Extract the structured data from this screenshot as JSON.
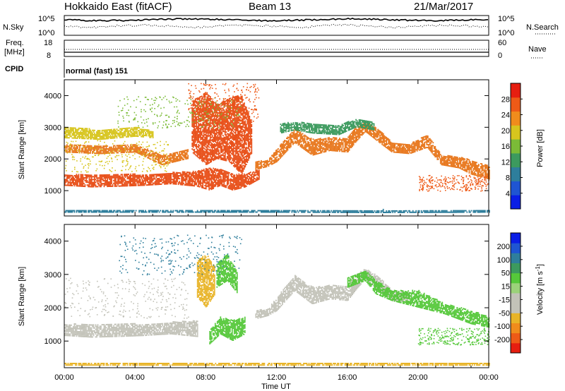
{
  "header": {
    "station": "Hokkaido East (fitACF)",
    "beam": "Beam 13",
    "date": "21/Mar/2017"
  },
  "top_panels": {
    "nsky_label": "N.Sky",
    "nsearch_label": "N.Search",
    "noise_ticks": [
      "10^5",
      "10^0"
    ],
    "freq_label": "Freq.",
    "freq_unit": "[MHz]",
    "freq_ticks": [
      "18",
      "8"
    ],
    "nave_ticks": [
      "60",
      "0"
    ],
    "nave_label": "Nave",
    "cpid_label": "CPID",
    "cpid_value": "normal (fast) 151"
  },
  "colors": {
    "scatter_orange": "#e8781e",
    "ground_gray": "#c2c2b8",
    "velocity_green": "#55c83a"
  },
  "chart_data": [
    {
      "type": "heatmap",
      "name": "power",
      "ylabel": "Slant Range [km]",
      "ylim": [
        200,
        4500
      ],
      "y_ticks": [
        "1000",
        "2000",
        "3000",
        "4000"
      ],
      "xlim": [
        0,
        24
      ],
      "x_ticks": [
        "00:00",
        "04:00",
        "08:00",
        "12:00",
        "16:00",
        "20:00",
        "00:00"
      ],
      "colorbar": {
        "label": "Power [dB]",
        "range": [
          0,
          32
        ],
        "ticks": [
          "4",
          "8",
          "12",
          "16",
          "20",
          "24",
          "28"
        ],
        "colors": [
          "#0a1ee6",
          "#1f55d2",
          "#2e7e9c",
          "#3c9a5e",
          "#7bbb37",
          "#d7c51e",
          "#f08c1c",
          "#ee5a17",
          "#e61e10"
        ]
      },
      "bands": [
        {
          "color": "#e8501a",
          "pts": [
            [
              0,
              1150,
              1500
            ],
            [
              1.5,
              1100,
              1480
            ],
            [
              3,
              1120,
              1500
            ],
            [
              4.5,
              1150,
              1500
            ],
            [
              6,
              1200,
              1550
            ],
            [
              7.5,
              1120,
              1600
            ],
            [
              8.2,
              1000,
              1700
            ],
            [
              8.8,
              1150,
              1650
            ],
            [
              9.5,
              1000,
              1500
            ],
            [
              10.2,
              1100,
              1500
            ],
            [
              11,
              1350,
              1650
            ]
          ]
        },
        {
          "color": "#e8781e",
          "pts": [
            [
              0,
              2200,
              2450
            ],
            [
              2,
              2150,
              2400
            ],
            [
              4,
              2200,
              2450
            ],
            [
              5.5,
              1800,
              2100
            ],
            [
              7,
              2000,
              2300
            ]
          ]
        },
        {
          "color": "#d7c51e",
          "pts": [
            [
              0,
              2650,
              3000
            ],
            [
              2,
              2600,
              2900
            ],
            [
              4,
              2700,
              3000
            ],
            [
              5,
              2650,
              2850
            ]
          ]
        },
        {
          "color": "#e8501a",
          "pts": [
            [
              7.2,
              2200,
              3800
            ],
            [
              8,
              1800,
              4100
            ],
            [
              8.6,
              2000,
              3700
            ],
            [
              9.3,
              1900,
              3900
            ],
            [
              10,
              1500,
              4000
            ],
            [
              10.6,
              2200,
              3100
            ]
          ]
        },
        {
          "color": "#e8781e",
          "pts": [
            [
              10.8,
              1650,
              1900
            ],
            [
              11.5,
              1750,
              1950
            ],
            [
              12,
              1900,
              2300
            ],
            [
              13,
              2500,
              2950
            ],
            [
              14,
              2100,
              2600
            ],
            [
              15,
              2250,
              2650
            ],
            [
              16,
              2200,
              2650
            ],
            [
              16.5,
              2550,
              3000
            ],
            [
              17,
              2850,
              3150
            ],
            [
              17.8,
              2500,
              2900
            ],
            [
              18.5,
              2200,
              2500
            ],
            [
              19.5,
              2150,
              2450
            ],
            [
              20.5,
              2350,
              2750
            ],
            [
              21.3,
              1800,
              2100
            ],
            [
              22.3,
              1700,
              2050
            ],
            [
              23,
              1500,
              1950
            ],
            [
              24,
              1350,
              1750
            ]
          ]
        },
        {
          "color": "#3c9a5e",
          "pts": [
            [
              12.2,
              2800,
              3100
            ],
            [
              13,
              2900,
              3150
            ],
            [
              14,
              2800,
              3100
            ],
            [
              15.5,
              2750,
              3050
            ],
            [
              16.5,
              3000,
              3250
            ],
            [
              17.5,
              2900,
              3150
            ]
          ]
        },
        {
          "color": "#2e7e9c",
          "pts": [
            [
              0,
              300,
              380
            ],
            [
              6,
              300,
              370
            ],
            [
              12,
              300,
              370
            ],
            [
              18,
              290,
              380
            ],
            [
              24,
              300,
              380
            ]
          ]
        }
      ],
      "sparse": [
        {
          "x": [
            3,
            10
          ],
          "y": [
            3000,
            4000
          ],
          "color": "#7bbb37"
        },
        {
          "x": [
            7,
            11
          ],
          "y": [
            3200,
            4400
          ],
          "color": "#ee5a17"
        },
        {
          "x": [
            0,
            6
          ],
          "y": [
            1600,
            2600
          ],
          "color": "#d7c51e"
        },
        {
          "x": [
            20,
            24
          ],
          "y": [
            1000,
            1500
          ],
          "color": "#ee5a17"
        }
      ]
    },
    {
      "type": "heatmap",
      "name": "velocity",
      "ylabel": "Slant Range [km]",
      "ylim": [
        200,
        4500
      ],
      "y_ticks": [
        "1000",
        "2000",
        "3000",
        "4000"
      ],
      "xlim": [
        0,
        24
      ],
      "x_ticks": [
        "00:00",
        "04:00",
        "08:00",
        "12:00",
        "16:00",
        "20:00",
        "00:00"
      ],
      "xlabel": "Time UT",
      "colorbar": {
        "label": "Velocity [m s",
        "label_sup": "-1",
        "label_end": "]",
        "range": [
          -250,
          250
        ],
        "ticks": [
          "200",
          "100",
          "50",
          "15",
          "-15",
          "-50",
          "-100",
          "-200"
        ],
        "colors": [
          "#e61e10",
          "#ee5a17",
          "#f08c1c",
          "#e8b428",
          "#c2c2b8",
          "#c2c2b8",
          "#9bd27a",
          "#55c83a",
          "#3c9a5e",
          "#2e7e9c",
          "#1f55d2",
          "#0a1ee6"
        ]
      },
      "bands": [
        {
          "color": "#c2c2b8",
          "pts": [
            [
              0,
              1150,
              1500
            ],
            [
              1.5,
              1100,
              1480
            ],
            [
              3,
              1120,
              1500
            ],
            [
              4.5,
              1150,
              1500
            ],
            [
              6,
              1200,
              1550
            ],
            [
              7.5,
              1120,
              1600
            ]
          ]
        },
        {
          "color": "#c2c2b8",
          "pts": [
            [
              10.8,
              1650,
              1900
            ],
            [
              11.5,
              1750,
              1950
            ],
            [
              12,
              1900,
              2300
            ],
            [
              13,
              2500,
              2950
            ],
            [
              14,
              2100,
              2600
            ],
            [
              15,
              2250,
              2650
            ],
            [
              16,
              2200,
              2650
            ],
            [
              16.5,
              2550,
              3000
            ],
            [
              17,
              2850,
              3150
            ],
            [
              17.8,
              2500,
              2900
            ],
            [
              18.5,
              2200,
              2500
            ],
            [
              19.5,
              2150,
              2450
            ]
          ]
        },
        {
          "color": "#55c83a",
          "pts": [
            [
              8.2,
              900,
              1300
            ],
            [
              8.8,
              1200,
              1700
            ],
            [
              9.5,
              1000,
              1600
            ],
            [
              10.2,
              1200,
              1700
            ]
          ]
        },
        {
          "color": "#e8b428",
          "pts": [
            [
              7.5,
              2300,
              3400
            ],
            [
              8,
              2000,
              3600
            ],
            [
              8.5,
              2400,
              3200
            ]
          ]
        },
        {
          "color": "#55c83a",
          "pts": [
            [
              8.6,
              2600,
              3300
            ],
            [
              9.2,
              2800,
              3600
            ],
            [
              9.8,
              2400,
              3000
            ]
          ]
        },
        {
          "color": "#55c83a",
          "pts": [
            [
              16,
              2600,
              2900
            ],
            [
              17,
              2800,
              3100
            ],
            [
              17.6,
              2400,
              2800
            ],
            [
              18.5,
              2200,
              2500
            ],
            [
              20,
              2000,
              2500
            ],
            [
              21.5,
              1800,
              2100
            ],
            [
              23,
              1500,
              1900
            ],
            [
              24,
              1400,
              1700
            ]
          ]
        },
        {
          "color": "#e8b428",
          "pts": [
            [
              0,
              260,
              330
            ],
            [
              8,
              260,
              320
            ],
            [
              16,
              260,
              330
            ],
            [
              24,
              260,
              330
            ]
          ]
        }
      ],
      "sparse": [
        {
          "x": [
            3,
            10
          ],
          "y": [
            3000,
            4200
          ],
          "color": "#2e7e9c"
        },
        {
          "x": [
            0,
            7
          ],
          "y": [
            1700,
            2900
          ],
          "color": "#c2c2b8"
        },
        {
          "x": [
            20,
            24
          ],
          "y": [
            900,
            1400
          ],
          "color": "#55c83a"
        }
      ]
    }
  ]
}
